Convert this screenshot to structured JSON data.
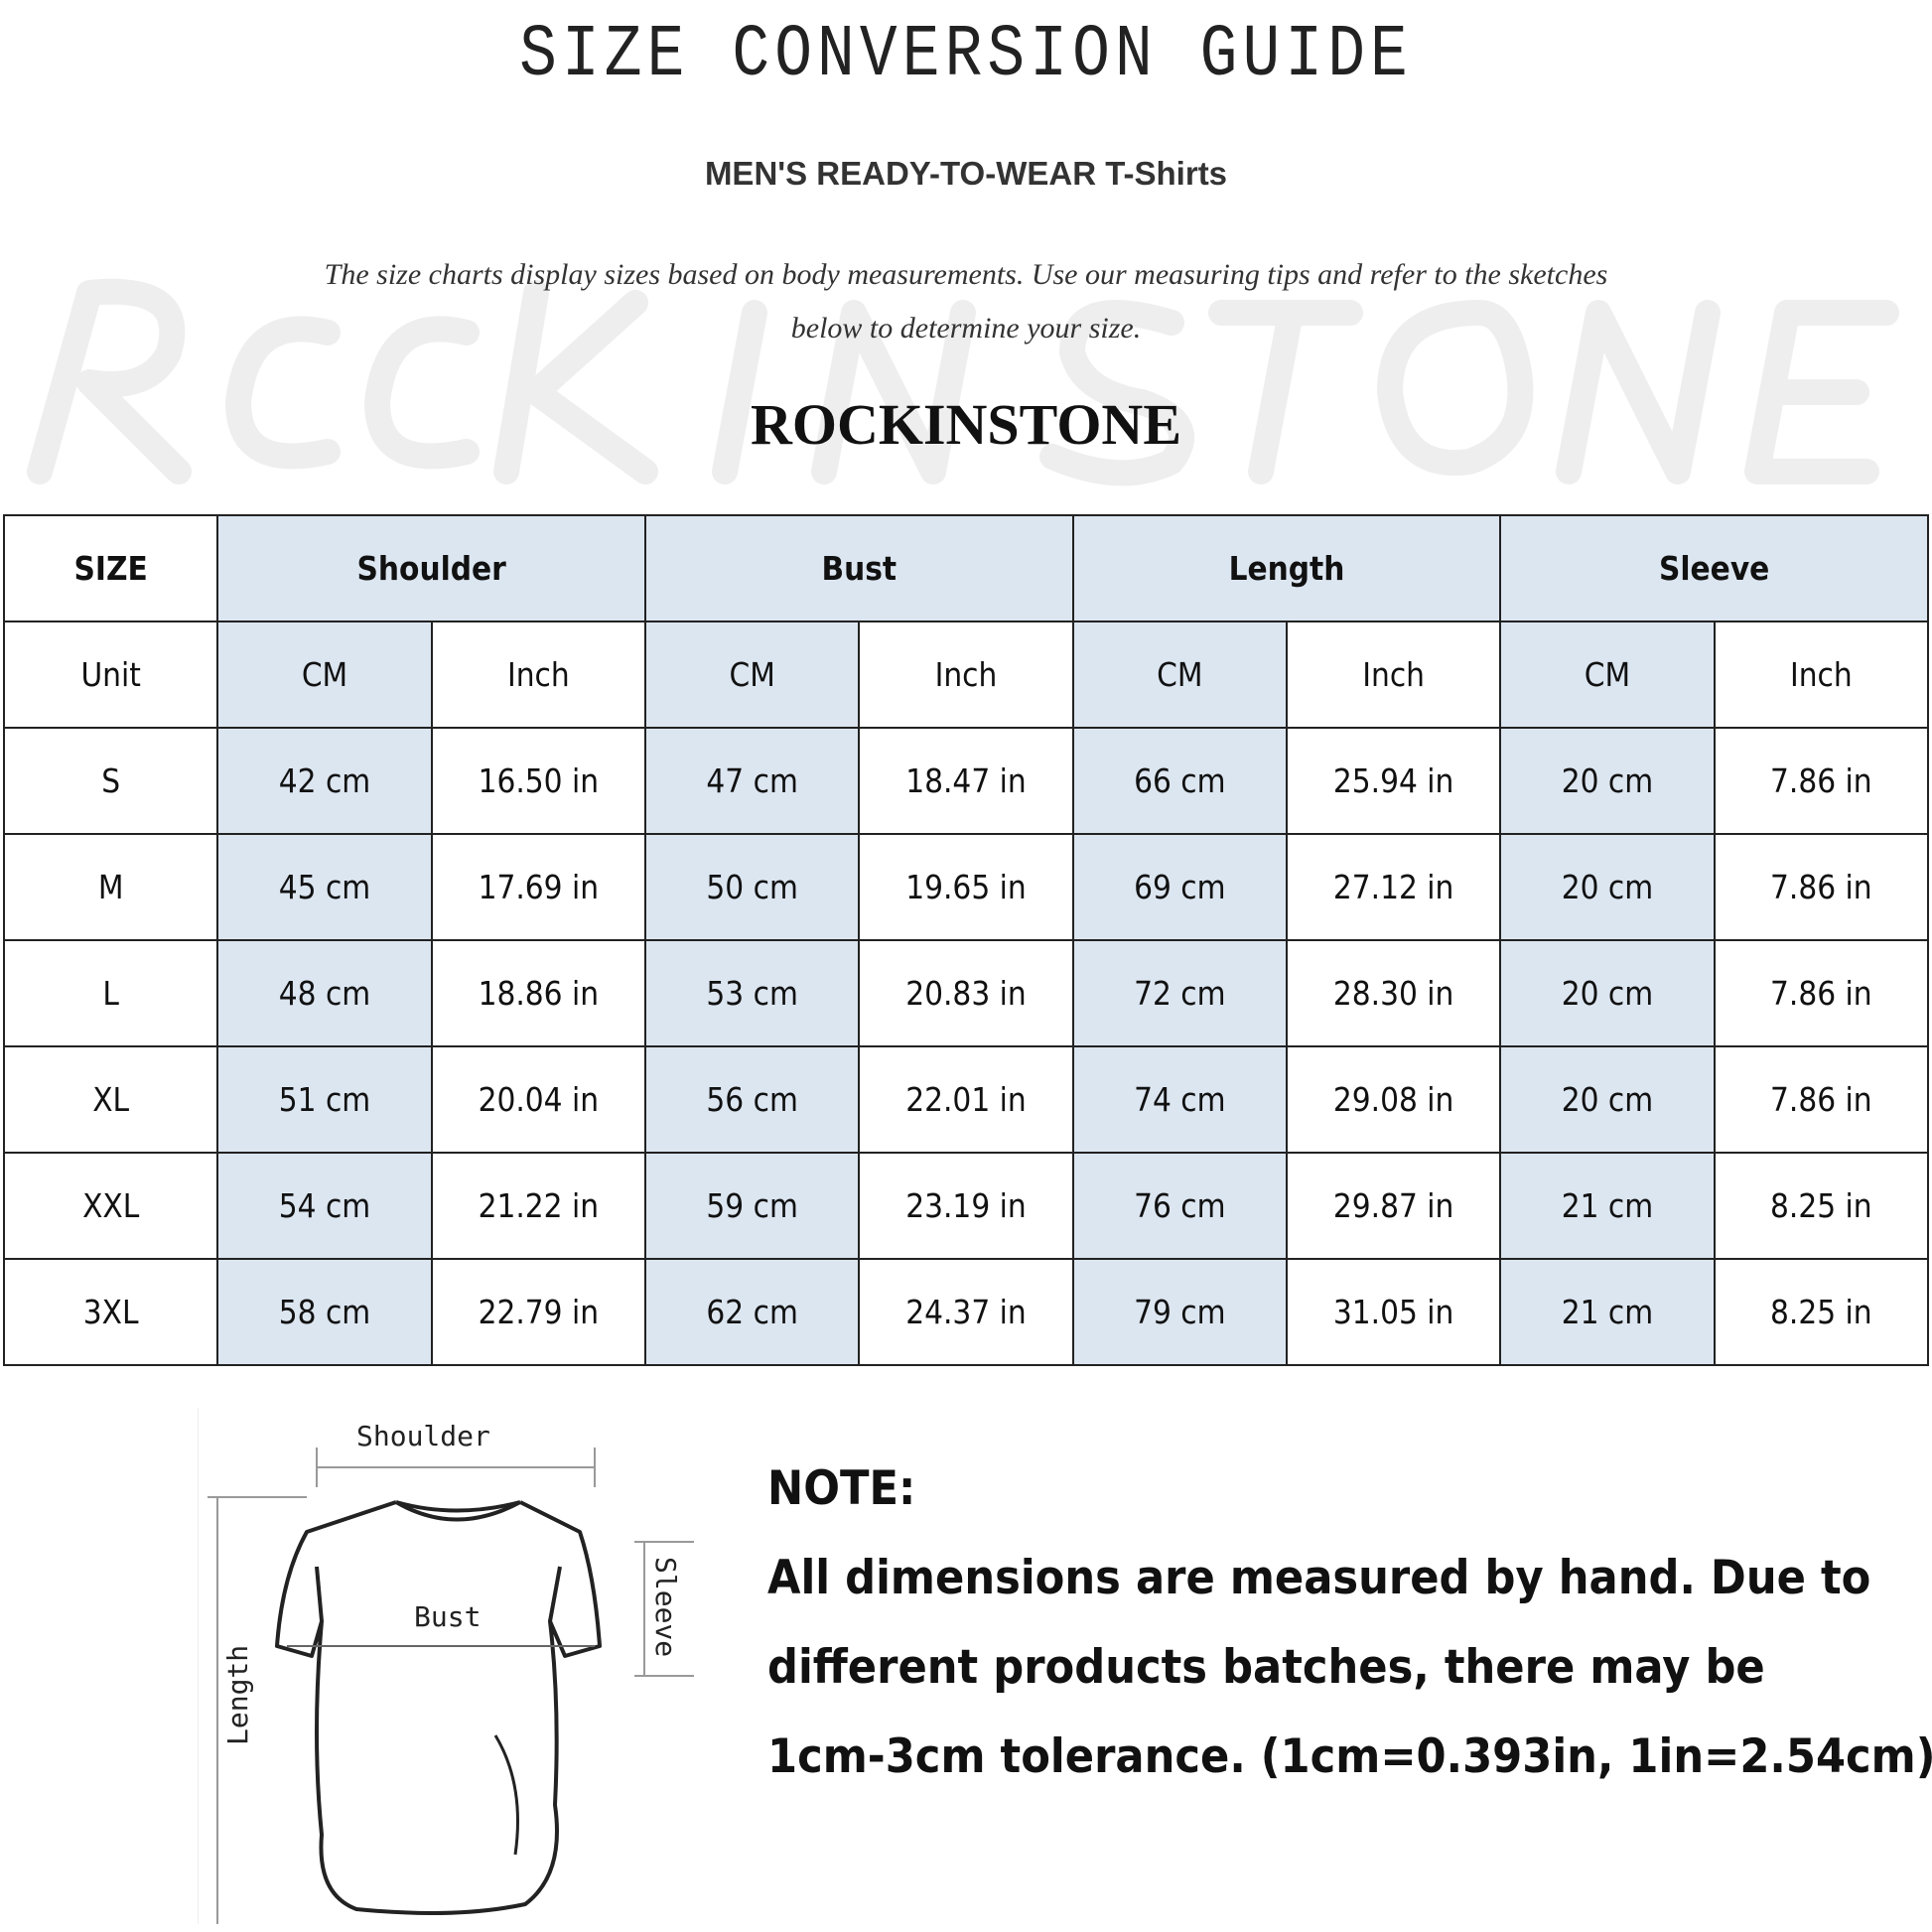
{
  "title": "SIZE CONVERSION GUIDE",
  "subtitle": "MEN'S READY-TO-WEAR T-Shirts",
  "description_line1": "The size charts display sizes based on body measurements. Use our measuring tips and refer to the sketches",
  "description_line2": "below to determine your size.",
  "watermark": "ROCK IN STONE",
  "brand": "ROCKINSTONE",
  "colors": {
    "header_blue": "#dce6f1",
    "border": "#222222"
  },
  "table": {
    "header": [
      "SIZE",
      "Shoulder",
      "Bust",
      "Length",
      "Sleeve"
    ],
    "units": [
      "Unit",
      "CM",
      "Inch",
      "CM",
      "Inch",
      "CM",
      "Inch",
      "CM",
      "Inch"
    ],
    "rows": [
      [
        "S",
        "42 cm",
        "16.50 in",
        "47 cm",
        "18.47 in",
        "66 cm",
        "25.94 in",
        "20 cm",
        "7.86 in"
      ],
      [
        "M",
        "45 cm",
        "17.69 in",
        "50 cm",
        "19.65 in",
        "69 cm",
        "27.12 in",
        "20 cm",
        "7.86 in"
      ],
      [
        "L",
        "48 cm",
        "18.86 in",
        "53 cm",
        "20.83 in",
        "72 cm",
        "28.30 in",
        "20 cm",
        "7.86 in"
      ],
      [
        "XL",
        "51 cm",
        "20.04 in",
        "56 cm",
        "22.01 in",
        "74 cm",
        "29.08 in",
        "20 cm",
        "7.86 in"
      ],
      [
        "XXL",
        "54 cm",
        "21.22 in",
        "59 cm",
        "23.19 in",
        "76 cm",
        "29.87 in",
        "21 cm",
        "8.25 in"
      ],
      [
        "3XL",
        "58 cm",
        "22.79 in",
        "62 cm",
        "24.37 in",
        "79 cm",
        "31.05 in",
        "21 cm",
        "8.25 in"
      ]
    ]
  },
  "sketch": {
    "shoulder": "Shoulder",
    "bust": "Bust",
    "length": "Length",
    "sleeve": "Sleeve"
  },
  "note": {
    "heading": "NOTE:",
    "line1": "All dimensions are measured by hand. Due to",
    "line2": "different products batches, there may be",
    "line3": "1cm-3cm tolerance. (1cm=0.393in, 1in=2.54cm)"
  }
}
